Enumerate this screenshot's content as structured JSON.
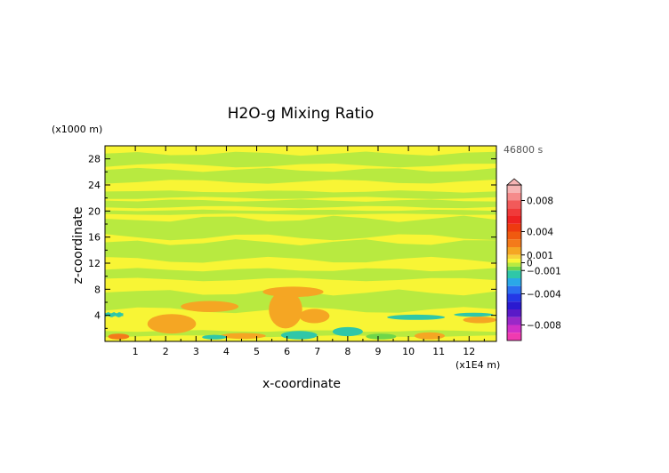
{
  "chart_data": {
    "type": "heatmap",
    "title": "H2O-g Mixing Ratio",
    "xlabel": "x-coordinate",
    "ylabel": "z-coordinate",
    "x_unit": "(x1E4 m)",
    "y_unit": "(x1000 m)",
    "time_label": "46800 s",
    "xlim": [
      0,
      12.9
    ],
    "ylim": [
      0,
      30
    ],
    "x_ticks": [
      1,
      2,
      3,
      4,
      5,
      6,
      7,
      8,
      9,
      10,
      11,
      12
    ],
    "y_ticks": [
      4,
      8,
      12,
      16,
      20,
      24,
      28
    ],
    "colorbar": {
      "range": [
        -0.01,
        0.01
      ],
      "labels": [
        {
          "value": 0.008,
          "text": "0.008"
        },
        {
          "value": 0.004,
          "text": "0.004"
        },
        {
          "value": 0.001,
          "text": "0.001"
        },
        {
          "value": 0,
          "text": "0"
        },
        {
          "value": -0.001,
          "text": "−0.001"
        },
        {
          "value": -0.004,
          "text": "−0.004"
        },
        {
          "value": -0.008,
          "text": "−0.008"
        }
      ],
      "levels": [
        {
          "from": 0.009,
          "to": 0.01,
          "color": "#f6b4b4"
        },
        {
          "from": 0.008,
          "to": 0.009,
          "color": "#f58b8b"
        },
        {
          "from": 0.007,
          "to": 0.008,
          "color": "#f25a5a"
        },
        {
          "from": 0.006,
          "to": 0.007,
          "color": "#f03a3a"
        },
        {
          "from": 0.005,
          "to": 0.006,
          "color": "#ee2222"
        },
        {
          "from": 0.004,
          "to": 0.005,
          "color": "#ee3a10"
        },
        {
          "from": 0.003,
          "to": 0.004,
          "color": "#f05a10"
        },
        {
          "from": 0.002,
          "to": 0.003,
          "color": "#f47a1a"
        },
        {
          "from": 0.001,
          "to": 0.002,
          "color": "#f5a623"
        },
        {
          "from": 0.0005,
          "to": 0.001,
          "color": "#f7d23a"
        },
        {
          "from": 0,
          "to": 0.0005,
          "color": "#f8f535"
        },
        {
          "from": -0.0005,
          "to": 0,
          "color": "#b8ea40"
        },
        {
          "from": -0.001,
          "to": -0.0005,
          "color": "#6fd64a"
        },
        {
          "from": -0.002,
          "to": -0.001,
          "color": "#2fc7a8"
        },
        {
          "from": -0.003,
          "to": -0.002,
          "color": "#2aa8e8"
        },
        {
          "from": -0.004,
          "to": -0.003,
          "color": "#2a6ef0"
        },
        {
          "from": -0.005,
          "to": -0.004,
          "color": "#2438e6"
        },
        {
          "from": -0.006,
          "to": -0.005,
          "color": "#2a1ad0"
        },
        {
          "from": -0.007,
          "to": -0.006,
          "color": "#5a1ac8"
        },
        {
          "from": -0.008,
          "to": -0.007,
          "color": "#9a28c8"
        },
        {
          "from": -0.009,
          "to": -0.008,
          "color": "#d030c8"
        },
        {
          "from": -0.01,
          "to": -0.009,
          "color": "#f03ab0"
        }
      ]
    },
    "field": {
      "background_color": "#f8f535",
      "bands": [
        {
          "z": [
            0.8,
            1.6
          ],
          "x": [
            0,
            12.9
          ],
          "color": "#b8ea40"
        },
        {
          "z": [
            3.8,
            4.4
          ],
          "x": [
            0,
            0.6
          ],
          "color": "#2fc7a8"
        },
        {
          "z": [
            4.8,
            7.5
          ],
          "x": [
            0,
            12.9
          ],
          "color": "#b8ea40"
        },
        {
          "z": [
            9.5,
            11.0
          ],
          "x": [
            0,
            12.9
          ],
          "color": "#b8ea40"
        },
        {
          "z": [
            12.5,
            15.2
          ],
          "x": [
            0,
            12.9
          ],
          "color": "#b8ea40"
        },
        {
          "z": [
            16.0,
            18.8
          ],
          "x": [
            0,
            12.9
          ],
          "color": "#b8ea40"
        },
        {
          "z": [
            19.5,
            20.1
          ],
          "x": [
            0,
            12.9
          ],
          "color": "#b8ea40"
        },
        {
          "z": [
            20.6,
            21.6
          ],
          "x": [
            0,
            12.9
          ],
          "color": "#b8ea40"
        },
        {
          "z": [
            22.0,
            23.0
          ],
          "x": [
            0,
            12.9
          ],
          "color": "#b8ea40"
        },
        {
          "z": [
            24.5,
            26.3
          ],
          "x": [
            0,
            12.9
          ],
          "color": "#b8ea40"
        },
        {
          "z": [
            27.0,
            28.8
          ],
          "x": [
            0,
            12.9
          ],
          "color": "#b8ea40"
        }
      ],
      "blobs": [
        {
          "x": [
            1.4,
            3.0
          ],
          "z": [
            1.2,
            4.2
          ],
          "color": "#f5a623"
        },
        {
          "x": [
            2.5,
            4.4
          ],
          "z": [
            4.5,
            6.2
          ],
          "color": "#f5a623"
        },
        {
          "x": [
            5.4,
            6.5
          ],
          "z": [
            2.0,
            7.8
          ],
          "color": "#f5a623"
        },
        {
          "x": [
            5.2,
            7.2
          ],
          "z": [
            6.8,
            8.4
          ],
          "color": "#f5a623"
        },
        {
          "x": [
            6.4,
            7.4
          ],
          "z": [
            2.8,
            5.0
          ],
          "color": "#f5a623"
        },
        {
          "x": [
            0.1,
            0.8
          ],
          "z": [
            0.3,
            1.2
          ],
          "color": "#f47a1a"
        },
        {
          "x": [
            3.8,
            5.3
          ],
          "z": [
            0.4,
            1.3
          ],
          "color": "#f5a623"
        },
        {
          "x": [
            10.2,
            11.2
          ],
          "z": [
            0.3,
            1.4
          ],
          "color": "#f5a623"
        },
        {
          "x": [
            11.8,
            12.9
          ],
          "z": [
            2.8,
            3.8
          ],
          "color": "#f5a623"
        },
        {
          "x": [
            5.8,
            7.0
          ],
          "z": [
            0.3,
            1.6
          ],
          "color": "#2fc7a8"
        },
        {
          "x": [
            3.2,
            4.0
          ],
          "z": [
            0.3,
            1.0
          ],
          "color": "#2fc7a8"
        },
        {
          "x": [
            9.3,
            11.2
          ],
          "z": [
            3.3,
            4.1
          ],
          "color": "#2fc7a8"
        },
        {
          "x": [
            11.5,
            12.8
          ],
          "z": [
            3.8,
            4.4
          ],
          "color": "#2fc7a8"
        },
        {
          "x": [
            7.5,
            8.5
          ],
          "z": [
            0.8,
            2.2
          ],
          "color": "#2fc7a8"
        },
        {
          "x": [
            8.6,
            9.6
          ],
          "z": [
            0.3,
            1.2
          ],
          "color": "#6fd64a"
        }
      ]
    }
  }
}
